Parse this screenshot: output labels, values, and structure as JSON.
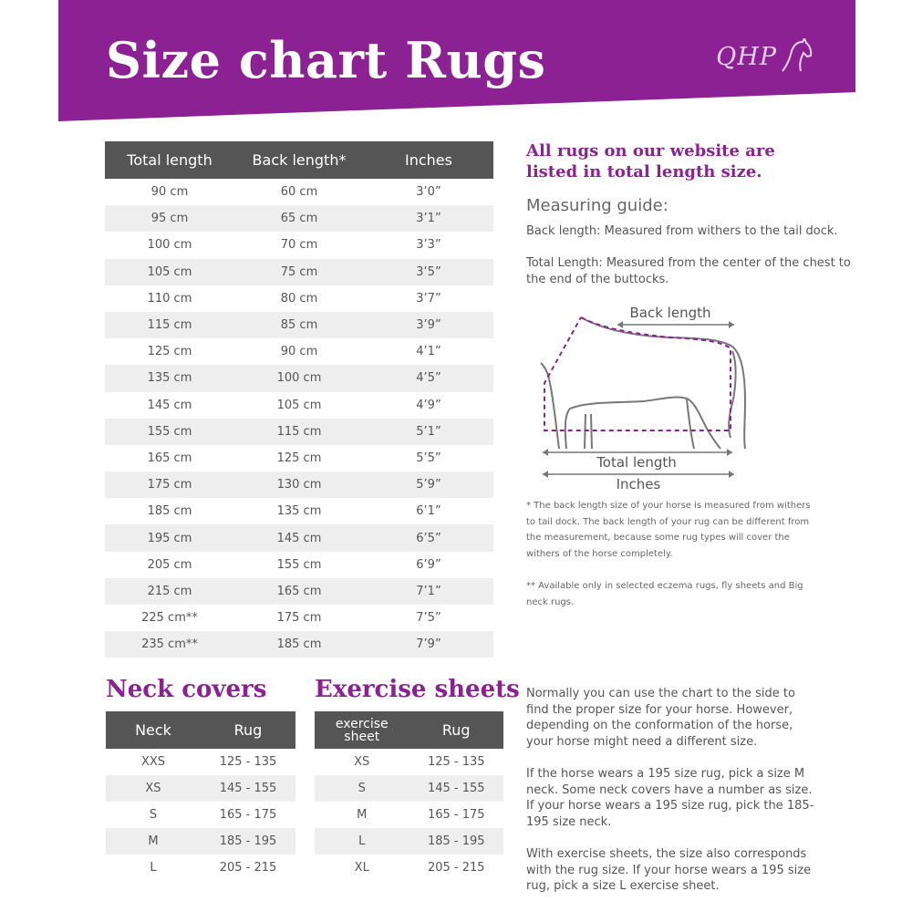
{
  "header": {
    "title": "Size chart Rugs",
    "logo_text": "QHP"
  },
  "main_table": {
    "headers": [
      "Total length",
      "Back length*",
      "Inches"
    ],
    "rows": [
      [
        "90 cm",
        "60 cm",
        "3’0”"
      ],
      [
        "95 cm",
        "65 cm",
        "3’1”"
      ],
      [
        "100 cm",
        "70 cm",
        "3’3”"
      ],
      [
        "105 cm",
        "75 cm",
        "3’5”"
      ],
      [
        "110 cm",
        "80 cm",
        "3’7”"
      ],
      [
        "115 cm",
        "85 cm",
        "3’9”"
      ],
      [
        "125 cm",
        "90 cm",
        "4’1”"
      ],
      [
        "135 cm",
        "100 cm",
        "4’5”"
      ],
      [
        "145 cm",
        "105 cm",
        "4’9”"
      ],
      [
        "155 cm",
        "115 cm",
        "5’1”"
      ],
      [
        "165 cm",
        "125 cm",
        "5’5”"
      ],
      [
        "175 cm",
        "130 cm",
        "5’9”"
      ],
      [
        "185 cm",
        "135 cm",
        "6’1”"
      ],
      [
        "195 cm",
        "145 cm",
        "6’5”"
      ],
      [
        "205 cm",
        "155 cm",
        "6’9”"
      ],
      [
        "215 cm",
        "165 cm",
        "7’1”"
      ],
      [
        "225 cm**",
        "175 cm",
        "7’5”"
      ],
      [
        "235 cm**",
        "185 cm",
        "7’9”"
      ]
    ]
  },
  "info": {
    "website_note_line1": "All rugs on our website are",
    "website_note_line2": "listed in total length size.",
    "guide_title": "Measuring guide:",
    "guide_back": "Back length: Measured from withers to the tail dock.",
    "guide_total": "Total Length: Measured from the center of the chest to the end of the buttocks."
  },
  "diagram": {
    "back_length_label": "Back length",
    "total_length_label": "Total length",
    "inches_label": "Inches",
    "outline_color": "#777777",
    "dash_color": "#8c2193"
  },
  "footnotes": {
    "back": "* The back length size of your horse is measured from withers to tail dock. The back length of your rug can be different from the measurement, because some rug types will cover the withers of the horse completely.",
    "available": "** Available only in selected eczema rugs, fly sheets and Big neck rugs."
  },
  "neck_covers": {
    "title": "Neck covers",
    "headers": [
      "Neck",
      "Rug"
    ],
    "rows": [
      [
        "XXS",
        "125 - 135"
      ],
      [
        "XS",
        "145 - 155"
      ],
      [
        "S",
        "165 - 175"
      ],
      [
        "M",
        "185 - 195"
      ],
      [
        "L",
        "205 - 215"
      ]
    ]
  },
  "exercise_sheets": {
    "title": "Exercise sheets",
    "header_line1": "exercise",
    "header_line2": "sheet",
    "header_rug": "Rug",
    "rows": [
      [
        "XS",
        "125 - 135"
      ],
      [
        "S",
        "145 - 155"
      ],
      [
        "M",
        "165 - 175"
      ],
      [
        "L",
        "185 - 195"
      ],
      [
        "XL",
        "205 - 215"
      ]
    ]
  },
  "body": {
    "para1": "Normally you can use the chart to the side to find the proper size for your horse.  However, depending on the conformation of the horse, your horse might need a different size.",
    "para2": "If the horse wears a 195 size rug, pick a size M neck. Some neck covers have a number as size. If your horse wears a 195 size rug, pick the 185-195 size neck.",
    "para3": "With exercise sheets, the size also corresponds with the rug size. If your horse wears a 195 size rug, pick a size L exercise sheet."
  },
  "colors": {
    "brand_purple": "#8c2193",
    "header_gray": "#555555",
    "stripe_gray": "#eeeeee"
  }
}
